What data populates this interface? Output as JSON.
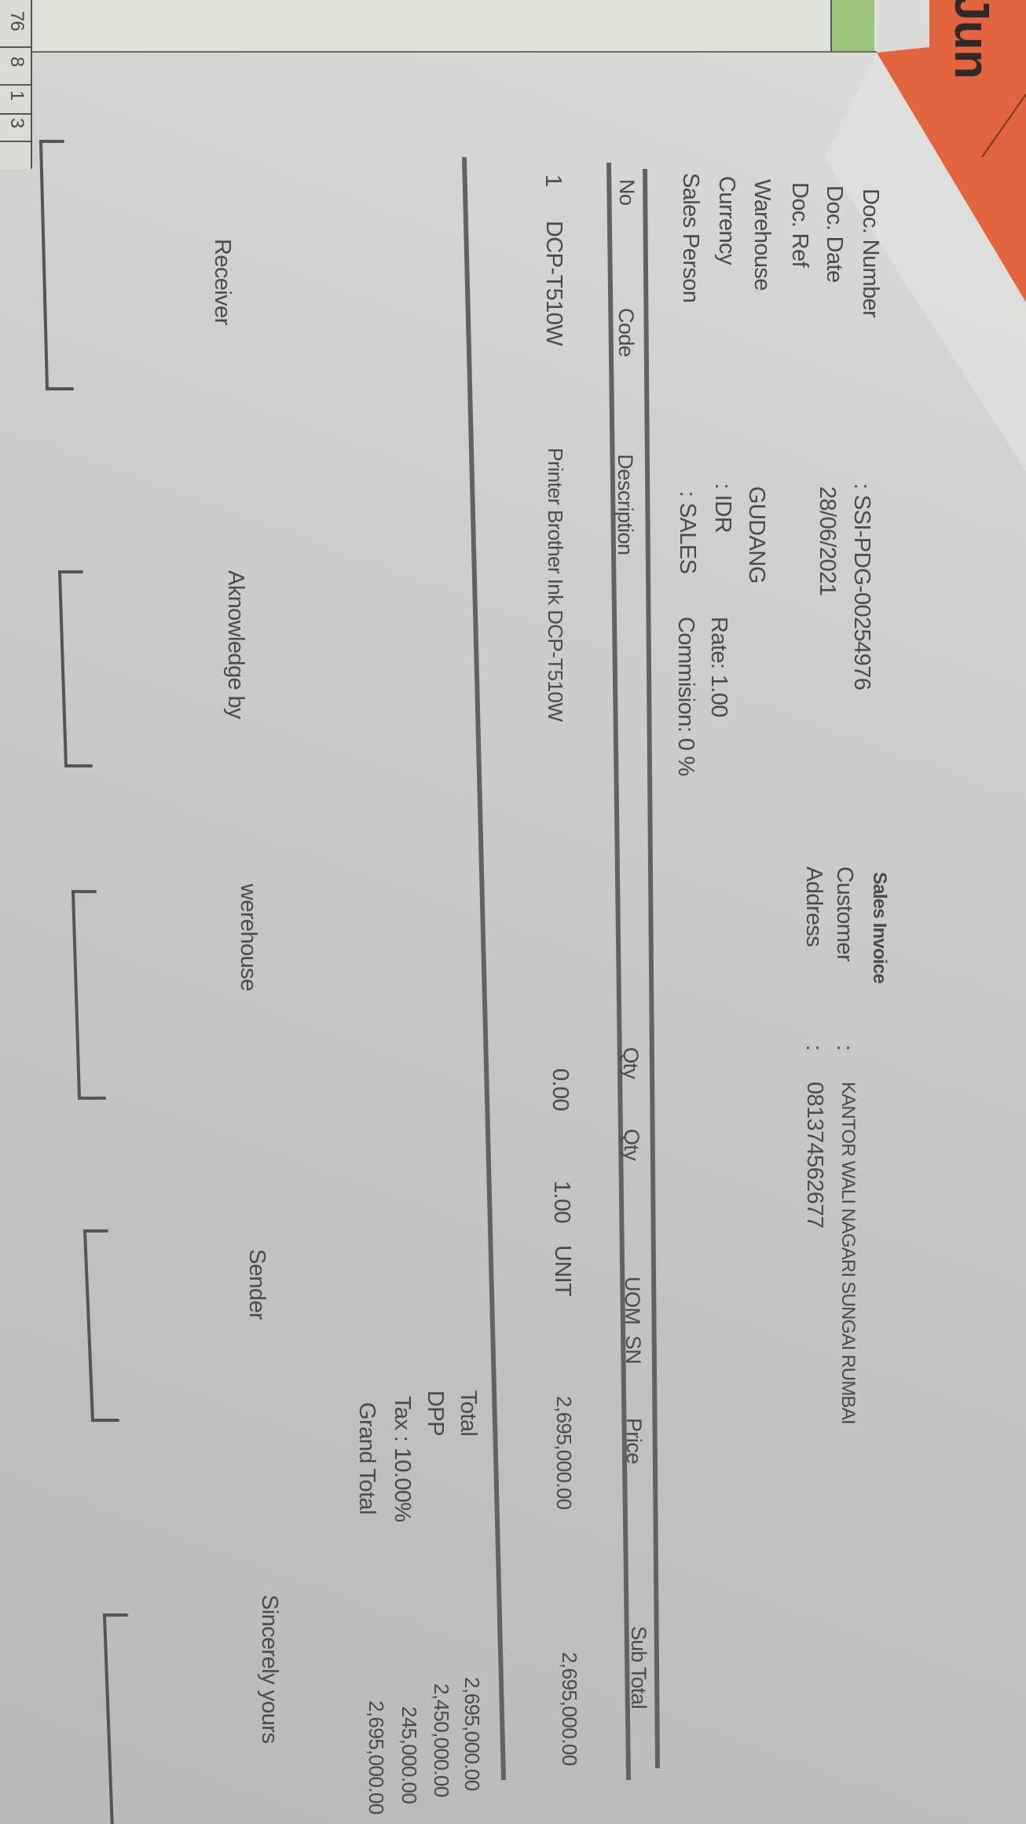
{
  "background": {
    "calendar_tab": "Jun",
    "spreadsheet_cells": [
      "76",
      "8",
      "1",
      "3"
    ]
  },
  "colors": {
    "paper": "#cfcfcd",
    "ink": "#4b4b4b",
    "rule": "#626262",
    "orange_folder": "#e2653f",
    "spreadsheet_green": "#9cc47a"
  },
  "invoice": {
    "title": "Sales Invoice",
    "fields": [
      {
        "label": "Doc. Number",
        "value": ": SSI-PDG-00254976"
      },
      {
        "label": "Doc. Date",
        "value": "28/06/2021"
      },
      {
        "label": "Doc. Ref",
        "value": ""
      },
      {
        "label": "Warehouse",
        "value": "GUDANG"
      },
      {
        "label": "Currency",
        "value": ": IDR",
        "extra": "Rate: 1.00"
      },
      {
        "label": "Sales Person",
        "value": ": SALES",
        "extra": "Commision: 0 %"
      }
    ],
    "customer": {
      "label": "Customer",
      "sep": ":",
      "value": "KANTOR WALI NAGARI SUNGAI RUMBAI"
    },
    "address": {
      "label": "Address",
      "sep": ":",
      "value": "081374562677"
    },
    "table": {
      "headers": [
        "No",
        "Code",
        "Description",
        "Qty",
        "Qty",
        "UOM",
        "SN",
        "Price",
        "Sub Total"
      ],
      "rows": [
        [
          "1",
          "DCP-T510W",
          "Printer Brother Ink DCP-T510W",
          "0.00",
          "1.00",
          "UNIT",
          "",
          "2,695,000.00",
          "2,695,000.00"
        ]
      ]
    },
    "totals": [
      {
        "label": "Total",
        "value": "2,695,000.00"
      },
      {
        "label": "DPP",
        "value": "2,450,000.00"
      },
      {
        "label": "Tax : 10.00%",
        "value": "245,000.00"
      },
      {
        "label": "Grand Total",
        "value": "2,695,000.00"
      }
    ],
    "signatures": [
      "Receiver",
      "Aknowledge by",
      "werehouse",
      "Sender",
      "Sincerely yours"
    ]
  }
}
